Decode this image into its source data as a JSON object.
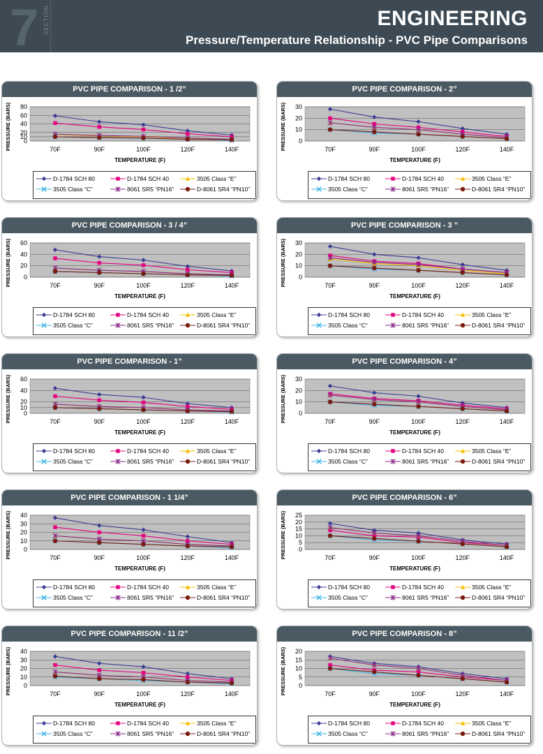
{
  "header": {
    "section_number": "7",
    "section_word": "SECTION",
    "title": "ENGINEERING",
    "subtitle": "Pressure/Temperature Relationship - PVC Pipe Comparisons"
  },
  "colors": {
    "header_bg": "#3d4a54",
    "plot_bg": "#c0c0c0",
    "series": [
      "#3c3c96",
      "#e6007e",
      "#f2c200",
      "#3ab4e6",
      "#8a2a8a",
      "#7a1a10"
    ]
  },
  "legend_labels": [
    "D-1784 SCH 80",
    "D-1784 SCH 40",
    "3505 Class “E”",
    "3505 Class “C”",
    "8061 SR5 “PN16”",
    "D-8061 SR4 “PN10”"
  ],
  "chart_data": [
    {
      "type": "line",
      "title": "PVC PIPE COMPARISON - 1 /2”",
      "xlabel": "TEMPERATURE (F)",
      "ylabel": "PRESSURE (BARS)",
      "categories": [
        "70F",
        "90F",
        "100F",
        "120F",
        "140F"
      ],
      "yticks": [
        0,
        10,
        20,
        40,
        60,
        80
      ],
      "ylim": [
        0,
        80
      ],
      "grid": true,
      "legend": "bottom",
      "series": [
        {
          "name": "D-1784 SCH 80",
          "values": [
            59,
            45,
            38,
            24,
            14
          ]
        },
        {
          "name": "D-1784 SCH 40",
          "values": [
            42,
            33,
            27,
            17,
            10
          ]
        },
        {
          "name": "3505 Class “E”",
          "values": [
            15,
            12,
            10,
            6,
            4
          ]
        },
        {
          "name": "3505 Class “C”",
          "values": [
            10,
            8,
            6,
            4,
            2
          ]
        },
        {
          "name": "8061 SR5 “PN16”",
          "values": [
            16,
            13,
            11,
            7,
            4
          ]
        },
        {
          "name": "D-8061 SR4 “PN10”",
          "values": [
            10,
            8,
            7,
            4,
            3
          ]
        }
      ]
    },
    {
      "type": "line",
      "title": "PVC PIPE COMPARISON - 2”",
      "xlabel": "TEMPERATURE (F)",
      "ylabel": "PRESSURE (BARS)",
      "categories": [
        "70F",
        "90F",
        "100F",
        "120F",
        "140F"
      ],
      "yticks": [
        0,
        10,
        20,
        30
      ],
      "ylim": [
        0,
        30
      ],
      "grid": true,
      "legend": "bottom",
      "series": [
        {
          "name": "D-1784 SCH 80",
          "values": [
            28,
            21,
            17,
            11,
            6
          ]
        },
        {
          "name": "D-1784 SCH 40",
          "values": [
            20,
            15,
            12,
            8,
            4
          ]
        },
        {
          "name": "3505 Class “E”",
          "values": [
            16,
            12,
            10,
            6,
            3
          ]
        },
        {
          "name": "3505 Class “C”",
          "values": [
            10,
            7,
            6,
            4,
            2
          ]
        },
        {
          "name": "8061 SR5 “PN16”",
          "values": [
            16,
            12,
            10,
            6,
            3
          ]
        },
        {
          "name": "D-8061 SR4 “PN10”",
          "values": [
            10,
            8,
            6,
            4,
            2
          ]
        }
      ]
    },
    {
      "type": "line",
      "title": "PVC PIPE COMPARISON - 3 / 4”",
      "xlabel": "TEMPERATURE (F)",
      "ylabel": "PRESSURE (BARS)",
      "categories": [
        "70F",
        "90F",
        "100F",
        "120F",
        "140F"
      ],
      "yticks": [
        0,
        20,
        40,
        60
      ],
      "ylim": [
        0,
        60
      ],
      "grid": true,
      "legend": "bottom",
      "series": [
        {
          "name": "D-1784 SCH 80",
          "values": [
            48,
            36,
            30,
            19,
            11
          ]
        },
        {
          "name": "D-1784 SCH 40",
          "values": [
            33,
            25,
            21,
            13,
            8
          ]
        },
        {
          "name": "3505 Class “E”",
          "values": [
            16,
            12,
            10,
            6,
            4
          ]
        },
        {
          "name": "3505 Class “C”",
          "values": [
            10,
            8,
            6,
            4,
            2
          ]
        },
        {
          "name": "8061 SR5 “PN16”",
          "values": [
            16,
            12,
            10,
            6,
            4
          ]
        },
        {
          "name": "D-8061 SR4 “PN10”",
          "values": [
            10,
            8,
            6,
            4,
            3
          ]
        }
      ]
    },
    {
      "type": "line",
      "title": "PVC PIPE COMPARISON - 3 ”",
      "xlabel": "TEMPERATURE (F)",
      "ylabel": "PRESSURE (BARS)",
      "categories": [
        "70F",
        "90F",
        "100F",
        "120F",
        "140F"
      ],
      "yticks": [
        0,
        10,
        20,
        30
      ],
      "ylim": [
        0,
        30
      ],
      "grid": true,
      "legend": "bottom",
      "series": [
        {
          "name": "D-1784 SCH 80",
          "values": [
            27,
            20,
            17,
            11,
            6
          ]
        },
        {
          "name": "D-1784 SCH 40",
          "values": [
            19,
            14,
            12,
            7,
            4
          ]
        },
        {
          "name": "3505 Class “E”",
          "values": [
            16,
            12,
            10,
            6,
            3
          ]
        },
        {
          "name": "3505 Class “C”",
          "values": [
            10,
            7,
            6,
            4,
            2
          ]
        },
        {
          "name": "8061 SR5 “PN16”",
          "values": [
            17,
            13,
            11,
            7,
            4
          ]
        },
        {
          "name": "D-8061 SR4 “PN10”",
          "values": [
            10,
            8,
            6,
            4,
            2
          ]
        }
      ]
    },
    {
      "type": "line",
      "title": "PVC PIPE COMPARISON - 1”",
      "xlabel": "TEMPERATURE (F)",
      "ylabel": "PRESSURE (BARS)",
      "categories": [
        "70F",
        "90F",
        "100F",
        "120F",
        "140F"
      ],
      "yticks": [
        0,
        10,
        20,
        40,
        60
      ],
      "ylim": [
        0,
        60
      ],
      "grid": true,
      "legend": "bottom",
      "series": [
        {
          "name": "D-1784 SCH 80",
          "values": [
            44,
            33,
            28,
            17,
            10
          ]
        },
        {
          "name": "D-1784 SCH 40",
          "values": [
            30,
            23,
            19,
            12,
            7
          ]
        },
        {
          "name": "3505 Class “E”",
          "values": [
            16,
            12,
            10,
            6,
            4
          ]
        },
        {
          "name": "3505 Class “C”",
          "values": [
            10,
            8,
            6,
            4,
            2
          ]
        },
        {
          "name": "8061 SR5 “PN16”",
          "values": [
            16,
            12,
            10,
            6,
            4
          ]
        },
        {
          "name": "D-8061 SR4 “PN10”",
          "values": [
            10,
            8,
            6,
            4,
            3
          ]
        }
      ]
    },
    {
      "type": "line",
      "title": "PVC PIPE COMPARISON - 4”",
      "xlabel": "TEMPERATURE (F)",
      "ylabel": "PRESSURE (BARS)",
      "categories": [
        "70F",
        "90F",
        "100F",
        "120F",
        "140F"
      ],
      "yticks": [
        0,
        10,
        20,
        30
      ],
      "ylim": [
        0,
        30
      ],
      "grid": true,
      "legend": "bottom",
      "series": [
        {
          "name": "D-1784 SCH 80",
          "values": [
            24,
            18,
            15,
            9,
            5
          ]
        },
        {
          "name": "D-1784 SCH 40",
          "values": [
            17,
            13,
            11,
            7,
            4
          ]
        },
        {
          "name": "3505 Class “E”",
          "values": [
            16,
            12,
            10,
            6,
            3
          ]
        },
        {
          "name": "3505 Class “C”",
          "values": [
            10,
            7,
            6,
            4,
            2
          ]
        },
        {
          "name": "8061 SR5 “PN16”",
          "values": [
            16,
            12,
            10,
            6,
            3
          ]
        },
        {
          "name": "D-8061 SR4 “PN10”",
          "values": [
            10,
            8,
            6,
            4,
            2
          ]
        }
      ]
    },
    {
      "type": "line",
      "title": "PVC PIPE COMPARISON - 1 1/4”",
      "xlabel": "TEMPERATURE (F)",
      "ylabel": "PRESSURE (BARS)",
      "categories": [
        "70F",
        "90F",
        "100F",
        "120F",
        "140F"
      ],
      "yticks": [
        0,
        10,
        20,
        30,
        40
      ],
      "ylim": [
        0,
        40
      ],
      "grid": true,
      "legend": "bottom",
      "series": [
        {
          "name": "D-1784 SCH 80",
          "values": [
            37,
            28,
            23,
            15,
            8
          ]
        },
        {
          "name": "D-1784 SCH 40",
          "values": [
            26,
            20,
            16,
            10,
            6
          ]
        },
        {
          "name": "3505 Class “E”",
          "values": [
            16,
            12,
            10,
            6,
            4
          ]
        },
        {
          "name": "3505 Class “C”",
          "values": [
            10,
            8,
            6,
            4,
            2
          ]
        },
        {
          "name": "8061 SR5 “PN16”",
          "values": [
            16,
            12,
            10,
            6,
            4
          ]
        },
        {
          "name": "D-8061 SR4 “PN10”",
          "values": [
            10,
            8,
            6,
            4,
            3
          ]
        }
      ]
    },
    {
      "type": "line",
      "title": "PVC PIPE COMPARISON - 6”",
      "xlabel": "TEMPERATURE (F)",
      "ylabel": "PRESSURE (BARS)",
      "categories": [
        "70F",
        "90F",
        "100F",
        "120F",
        "140F"
      ],
      "yticks": [
        0,
        5,
        10,
        15,
        20,
        25
      ],
      "ylim": [
        0,
        25
      ],
      "grid": true,
      "legend": "bottom",
      "series": [
        {
          "name": "D-1784 SCH 80",
          "values": [
            19,
            14,
            12,
            7,
            4
          ]
        },
        {
          "name": "D-1784 SCH 40",
          "values": [
            14,
            10,
            9,
            5,
            3
          ]
        },
        {
          "name": "3505 Class “E”",
          "values": [
            16,
            12,
            10,
            6,
            3
          ]
        },
        {
          "name": "3505 Class “C”",
          "values": [
            10,
            7,
            6,
            4,
            2
          ]
        },
        {
          "name": "8061 SR5 “PN16”",
          "values": [
            16,
            12,
            10,
            6,
            3
          ]
        },
        {
          "name": "D-8061 SR4 “PN10”",
          "values": [
            10,
            8,
            6,
            4,
            2
          ]
        }
      ]
    },
    {
      "type": "line",
      "title": "PVC PIPE COMPARISON - 11 /2”",
      "xlabel": "TEMPERATURE (F)",
      "ylabel": "PRESSURE (BARS)",
      "categories": [
        "70F",
        "90F",
        "100F",
        "120F",
        "140F"
      ],
      "yticks": [
        0,
        10,
        20,
        30,
        40
      ],
      "ylim": [
        0,
        40
      ],
      "grid": true,
      "legend": "bottom",
      "series": [
        {
          "name": "D-1784 SCH 80",
          "values": [
            34,
            26,
            22,
            14,
            8
          ]
        },
        {
          "name": "D-1784 SCH 40",
          "values": [
            24,
            18,
            15,
            10,
            6
          ]
        },
        {
          "name": "3505 Class “E”",
          "values": [
            16,
            12,
            10,
            6,
            4
          ]
        },
        {
          "name": "3505 Class “C”",
          "values": [
            10,
            8,
            6,
            4,
            2
          ]
        },
        {
          "name": "8061 SR5 “PN16”",
          "values": [
            16,
            12,
            10,
            6,
            4
          ]
        },
        {
          "name": "D-8061 SR4 “PN10”",
          "values": [
            11,
            8,
            7,
            4,
            3
          ]
        }
      ]
    },
    {
      "type": "line",
      "title": "PVC PIPE COMPARISON - 8”",
      "xlabel": "TEMPERATURE (F)",
      "ylabel": "PRESSURE (BARS)",
      "categories": [
        "70F",
        "90F",
        "100F",
        "120F",
        "140F"
      ],
      "yticks": [
        0,
        5,
        10,
        15,
        20
      ],
      "ylim": [
        0,
        20
      ],
      "grid": true,
      "legend": "bottom",
      "series": [
        {
          "name": "D-1784 SCH 80",
          "values": [
            17,
            13,
            11,
            7,
            4
          ]
        },
        {
          "name": "D-1784 SCH 40",
          "values": [
            12,
            9,
            8,
            5,
            3
          ]
        },
        {
          "name": "3505 Class “E”",
          "values": [
            16,
            12,
            10,
            6,
            3
          ]
        },
        {
          "name": "3505 Class “C”",
          "values": [
            10,
            7,
            6,
            4,
            2
          ]
        },
        {
          "name": "8061 SR5 “PN16”",
          "values": [
            16,
            12,
            10,
            6,
            3
          ]
        },
        {
          "name": "D-8061 SR4 “PN10”",
          "values": [
            10,
            8,
            6,
            4,
            2
          ]
        }
      ]
    }
  ]
}
